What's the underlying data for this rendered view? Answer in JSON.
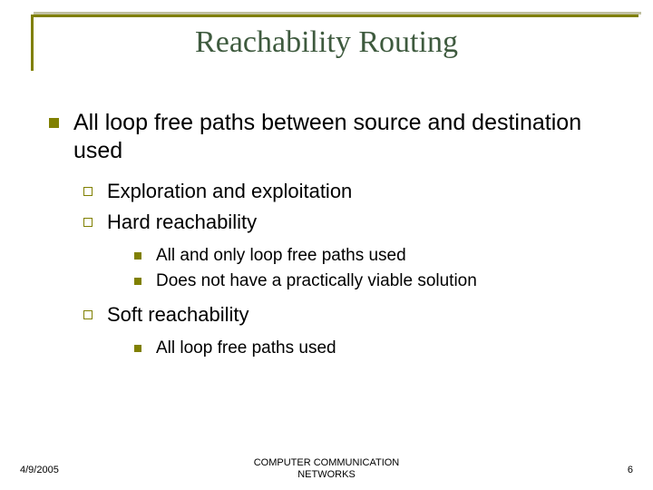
{
  "colors": {
    "accent": "#808000",
    "title": "#3e5a3e",
    "background": "#ffffff",
    "text": "#000000"
  },
  "typography": {
    "title_font": "Times New Roman",
    "body_font": "Arial",
    "title_size_pt": 34,
    "lvl1_size_pt": 25,
    "lvl2_size_pt": 22,
    "lvl3_size_pt": 19,
    "footer_size_pt": 11
  },
  "title": "Reachability Routing",
  "bullets": {
    "lvl1": {
      "text": "All loop free paths between source and destination used",
      "marker": "filled-square"
    },
    "lvl2": [
      {
        "text": "Exploration and exploitation",
        "marker": "hollow-square",
        "children": []
      },
      {
        "text": "Hard reachability",
        "marker": "hollow-square",
        "children": [
          {
            "text": "All and only loop free paths used",
            "marker": "filled-square-small"
          },
          {
            "text": "Does not have a practically viable solution",
            "marker": "filled-square-small"
          }
        ]
      },
      {
        "text": "Soft reachability",
        "marker": "hollow-square",
        "children": [
          {
            "text": "All loop free paths used",
            "marker": "filled-square-small"
          }
        ]
      }
    ]
  },
  "footer": {
    "date": "4/9/2005",
    "center_line1": "COMPUTER COMMUNICATION",
    "center_line2": "NETWORKS",
    "page": "6"
  }
}
